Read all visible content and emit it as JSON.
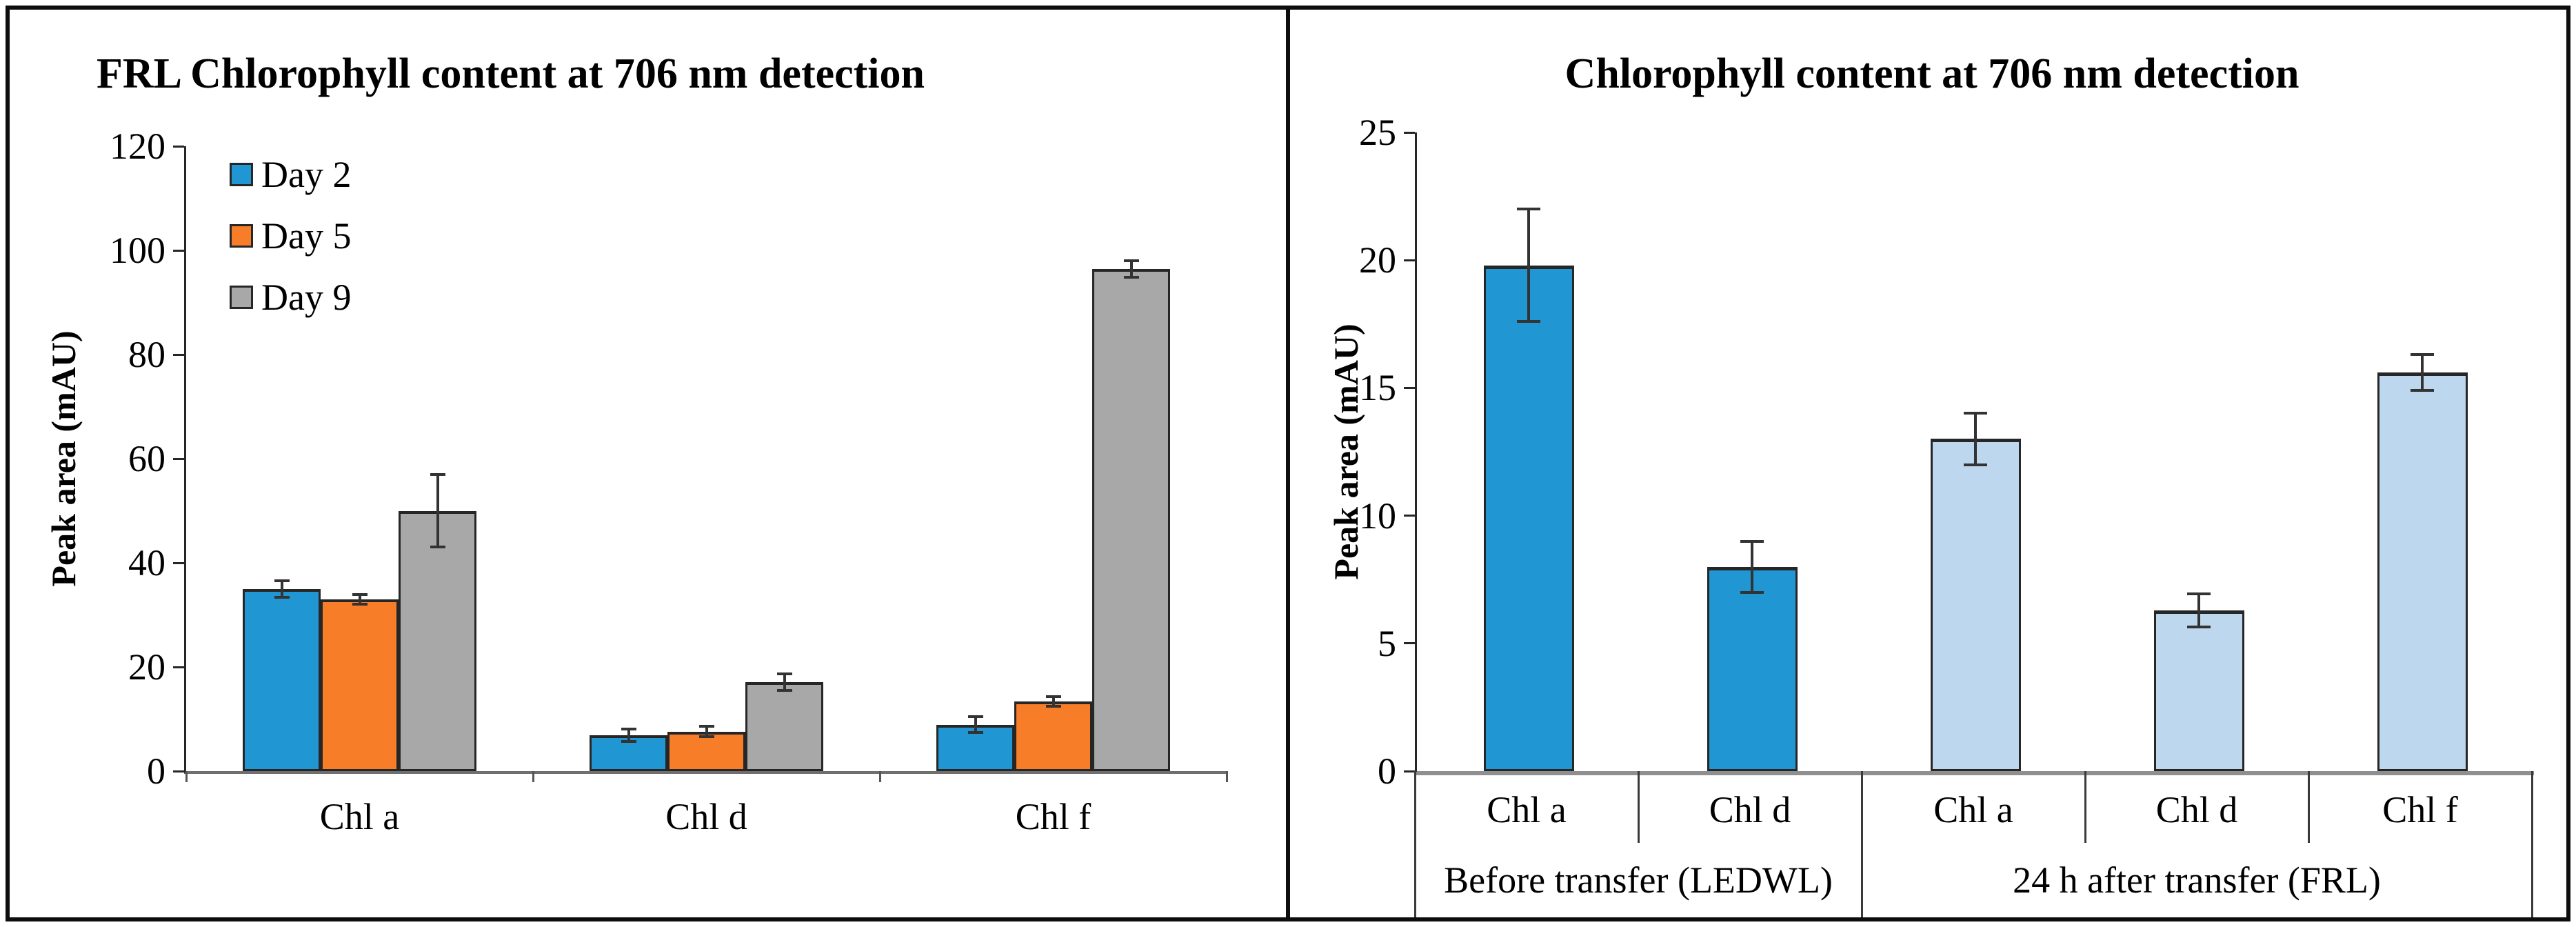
{
  "chart_data": [
    {
      "type": "bar",
      "panel": "left",
      "title": "FRL Chlorophyll content at 706 nm detection",
      "xlabel": "",
      "ylabel": "Peak area (mAU)",
      "ylim": [
        0,
        120
      ],
      "yticks": [
        0,
        20,
        40,
        60,
        80,
        100,
        120
      ],
      "grid": false,
      "legend_position": "inside-top-left",
      "categories": [
        "Chl a",
        "Chl d",
        "Chl f"
      ],
      "series": [
        {
          "name": "Day 2",
          "color": "#2097D3",
          "values": [
            35,
            6.9,
            8.9
          ],
          "errors": [
            1.6,
            1.2,
            1.5
          ]
        },
        {
          "name": "Day 5",
          "color": "#F87D28",
          "values": [
            33,
            7.6,
            13.4
          ],
          "errors": [
            0.9,
            1.0,
            0.9
          ]
        },
        {
          "name": "Day 9",
          "color": "#A8A8A8",
          "values": [
            50,
            17.1,
            96.4
          ],
          "errors": [
            7.0,
            1.6,
            1.6
          ]
        }
      ]
    },
    {
      "type": "bar",
      "panel": "right",
      "title": "Chlorophyll content at 706 nm detection",
      "xlabel": "",
      "ylabel": "Peak area (mAU)",
      "ylim": [
        0,
        25
      ],
      "yticks": [
        0,
        5,
        10,
        15,
        20,
        25
      ],
      "grid": false,
      "groups": [
        {
          "label": "Before transfer (LEDWL)",
          "categories": [
            "Chl a",
            "Chl d"
          ]
        },
        {
          "label": "24 h after transfer (FRL)",
          "categories": [
            "Chl a",
            "Chl d",
            "Chl f"
          ]
        }
      ],
      "bars": [
        {
          "group": "Before transfer (LEDWL)",
          "category": "Chl a",
          "value": 19.8,
          "error": 2.2,
          "color": "#2097D3"
        },
        {
          "group": "Before transfer (LEDWL)",
          "category": "Chl d",
          "value": 8.0,
          "error": 1.0,
          "color": "#2097D3"
        },
        {
          "group": "24 h after transfer (FRL)",
          "category": "Chl a",
          "value": 13.0,
          "error": 1.0,
          "color": "#BDD7EE"
        },
        {
          "group": "24 h after transfer (FRL)",
          "category": "Chl d",
          "value": 6.3,
          "error": 0.65,
          "color": "#BDD7EE"
        },
        {
          "group": "24 h after transfer (FRL)",
          "category": "Chl f",
          "value": 15.6,
          "error": 0.7,
          "color": "#BDD7EE"
        }
      ]
    }
  ],
  "style_colors": {
    "bar_border": "#262626",
    "error_bar": "#333333",
    "axis_line": "#262626",
    "baseline_left": "#6f6f6f",
    "baseline_right": "#8f8f8f",
    "frame": "#0d0d0d",
    "background": "#ffffff"
  }
}
